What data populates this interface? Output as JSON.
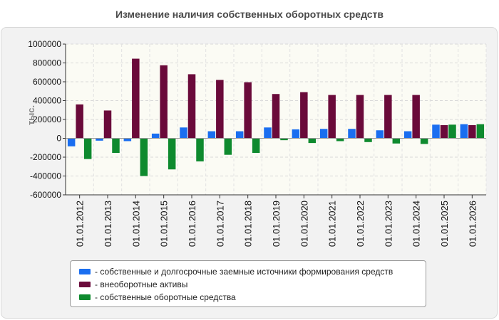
{
  "chart_data": {
    "type": "bar",
    "title": "Изменение наличия собственных оборотных средств",
    "ylabel": "тыс.",
    "xlabel": "",
    "ylim": [
      -600000,
      1000000
    ],
    "yticks": [
      -600000,
      -400000,
      -200000,
      0,
      200000,
      400000,
      600000,
      800000,
      1000000
    ],
    "grid": true,
    "legend_position": "bottom",
    "categories": [
      "01.01.2012",
      "01.01.2013",
      "01.01.2014",
      "01.01.2015",
      "01.01.2016",
      "01.01.2017",
      "01.01.2018",
      "01.01.2019",
      "01.01.2020",
      "01.01.2021",
      "01.01.2022",
      "01.01.2023",
      "01.01.2024",
      "01.01.2025",
      "01.01.2026"
    ],
    "series": [
      {
        "name": "- собственные и долгосрочные заемные источники формирования средств",
        "color": "#1a6ef0",
        "values": [
          -85000,
          -25000,
          -30000,
          50000,
          115000,
          75000,
          75000,
          115000,
          95000,
          100000,
          100000,
          85000,
          75000,
          145000,
          150000
        ]
      },
      {
        "name": "- внеоборотные активы",
        "color": "#6a0a3a",
        "values": [
          360000,
          295000,
          845000,
          775000,
          680000,
          620000,
          595000,
          470000,
          490000,
          460000,
          460000,
          460000,
          460000,
          140000,
          140000
        ]
      },
      {
        "name": "- собственные оборотные средства",
        "color": "#0e8a2e",
        "values": [
          -220000,
          -155000,
          -400000,
          -330000,
          -245000,
          -175000,
          -155000,
          -20000,
          -50000,
          -30000,
          -40000,
          -55000,
          -60000,
          145000,
          150000
        ]
      }
    ]
  }
}
